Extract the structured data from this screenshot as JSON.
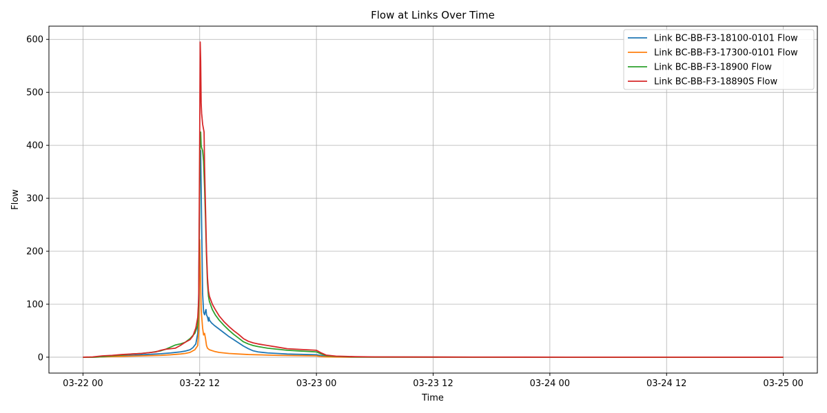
{
  "chart_data": {
    "type": "line",
    "title": "Flow at Links Over Time",
    "xlabel": "Time",
    "ylabel": "Flow",
    "x_unit": "hours",
    "xlim": [
      -3.5,
      75.5
    ],
    "ylim": [
      -30,
      625
    ],
    "x_ticks": [
      {
        "value": 0,
        "label": "03-22 00"
      },
      {
        "value": 12,
        "label": "03-22 12"
      },
      {
        "value": 24,
        "label": "03-23 00"
      },
      {
        "value": 36,
        "label": "03-23 12"
      },
      {
        "value": 48,
        "label": "03-24 00"
      },
      {
        "value": 60,
        "label": "03-24 12"
      },
      {
        "value": 72,
        "label": "03-25 00"
      }
    ],
    "y_ticks": [
      0,
      100,
      200,
      300,
      400,
      500,
      600
    ],
    "grid": true,
    "legend_position": "top-right",
    "series": [
      {
        "name": "Link BC-BB-F3-18100-0101 Flow",
        "color": "#1f77b4",
        "points": [
          [
            0,
            0
          ],
          [
            1,
            0
          ],
          [
            2,
            0.5
          ],
          [
            3,
            1.5
          ],
          [
            4,
            2.5
          ],
          [
            5,
            3.5
          ],
          [
            6,
            4.5
          ],
          [
            7,
            5.5
          ],
          [
            8,
            6.5
          ],
          [
            9,
            8
          ],
          [
            10,
            10
          ],
          [
            10.5,
            11.5
          ],
          [
            11,
            14
          ],
          [
            11.3,
            18
          ],
          [
            11.6,
            25
          ],
          [
            11.8,
            45
          ],
          [
            11.9,
            120
          ],
          [
            12,
            330
          ],
          [
            12.1,
            390
          ],
          [
            12.2,
            250
          ],
          [
            12.3,
            120
          ],
          [
            12.4,
            85
          ],
          [
            12.5,
            80
          ],
          [
            12.6,
            88
          ],
          [
            12.65,
            90
          ],
          [
            12.7,
            80
          ],
          [
            12.8,
            76
          ],
          [
            12.85,
            72
          ],
          [
            12.9,
            68
          ],
          [
            12.95,
            75
          ],
          [
            13,
            70
          ],
          [
            13.2,
            65
          ],
          [
            13.5,
            60
          ],
          [
            14,
            53
          ],
          [
            14.5,
            46
          ],
          [
            15,
            39
          ],
          [
            15.5,
            33
          ],
          [
            16,
            27
          ],
          [
            16.5,
            21
          ],
          [
            17,
            16
          ],
          [
            17.5,
            12
          ],
          [
            18,
            10
          ],
          [
            19,
            8
          ],
          [
            20,
            7
          ],
          [
            21,
            6
          ],
          [
            22,
            5.5
          ],
          [
            23,
            5
          ],
          [
            24,
            4.5
          ],
          [
            24.5,
            3
          ],
          [
            25,
            1.5
          ],
          [
            26,
            0.5
          ],
          [
            27,
            0.2
          ],
          [
            28,
            0.1
          ],
          [
            30,
            0.05
          ],
          [
            40,
            0.02
          ],
          [
            50,
            0.01
          ],
          [
            60,
            0
          ],
          [
            72,
            0
          ]
        ]
      },
      {
        "name": "Link BC-BB-F3-17300-0101 Flow",
        "color": "#ff7f0e",
        "points": [
          [
            0,
            0
          ],
          [
            1,
            0
          ],
          [
            2,
            0.5
          ],
          [
            4,
            1.5
          ],
          [
            6,
            2.5
          ],
          [
            8,
            3.5
          ],
          [
            9,
            4.5
          ],
          [
            10,
            6
          ],
          [
            10.5,
            7
          ],
          [
            11,
            9
          ],
          [
            11.5,
            14
          ],
          [
            11.8,
            22
          ],
          [
            11.9,
            50
          ],
          [
            12,
            222
          ],
          [
            12.05,
            180
          ],
          [
            12.15,
            90
          ],
          [
            12.3,
            55
          ],
          [
            12.4,
            42
          ],
          [
            12.5,
            45
          ],
          [
            12.6,
            35
          ],
          [
            12.7,
            22
          ],
          [
            12.8,
            17
          ],
          [
            13,
            14
          ],
          [
            13.5,
            11
          ],
          [
            14,
            9
          ],
          [
            15,
            7
          ],
          [
            16,
            6
          ],
          [
            17,
            5
          ],
          [
            18,
            4.5
          ],
          [
            19,
            4
          ],
          [
            20,
            3.5
          ],
          [
            22,
            3
          ],
          [
            24,
            2.5
          ],
          [
            24.5,
            1
          ],
          [
            25,
            0.5
          ],
          [
            26,
            0.2
          ],
          [
            28,
            0.1
          ],
          [
            30,
            0.05
          ],
          [
            40,
            0.02
          ],
          [
            50,
            0.01
          ],
          [
            60,
            0
          ],
          [
            72,
            0
          ]
        ]
      },
      {
        "name": "Link BC-BB-F3-18900 Flow",
        "color": "#2ca02c",
        "points": [
          [
            0,
            0
          ],
          [
            1,
            0
          ],
          [
            2,
            1
          ],
          [
            3,
            2.5
          ],
          [
            4,
            4
          ],
          [
            5,
            6
          ],
          [
            6,
            7
          ],
          [
            7,
            9
          ],
          [
            8,
            12
          ],
          [
            8.5,
            15
          ],
          [
            9,
            19
          ],
          [
            9.5,
            23
          ],
          [
            10,
            25
          ],
          [
            10.5,
            28
          ],
          [
            11,
            35
          ],
          [
            11.5,
            45
          ],
          [
            11.8,
            60
          ],
          [
            11.9,
            100
          ],
          [
            12,
            320
          ],
          [
            12.05,
            422
          ],
          [
            12.1,
            425
          ],
          [
            12.15,
            400
          ],
          [
            12.2,
            395
          ],
          [
            12.3,
            390
          ],
          [
            12.4,
            370
          ],
          [
            12.5,
            320
          ],
          [
            12.6,
            260
          ],
          [
            12.7,
            190
          ],
          [
            12.8,
            140
          ],
          [
            12.9,
            115
          ],
          [
            13,
            105
          ],
          [
            13.3,
            90
          ],
          [
            13.6,
            80
          ],
          [
            14,
            70
          ],
          [
            14.5,
            60
          ],
          [
            15,
            51
          ],
          [
            15.5,
            43
          ],
          [
            16,
            36
          ],
          [
            16.5,
            29
          ],
          [
            17,
            25
          ],
          [
            17.5,
            22
          ],
          [
            18,
            20
          ],
          [
            19,
            17
          ],
          [
            20,
            15
          ],
          [
            21,
            13
          ],
          [
            22,
            12
          ],
          [
            23,
            11
          ],
          [
            24,
            10
          ],
          [
            24.5,
            6
          ],
          [
            25,
            3
          ],
          [
            25.5,
            2
          ],
          [
            26,
            1.5
          ],
          [
            27,
            1
          ],
          [
            28,
            0.5
          ],
          [
            30,
            0.3
          ],
          [
            40,
            0.1
          ],
          [
            50,
            0.05
          ],
          [
            60,
            0.02
          ],
          [
            72,
            0
          ]
        ]
      },
      {
        "name": "Link BC-BB-F3-18890S Flow",
        "color": "#d62728",
        "points": [
          [
            0,
            0
          ],
          [
            1,
            0.5
          ],
          [
            1.5,
            1.5
          ],
          [
            2,
            2.5
          ],
          [
            3,
            3.5
          ],
          [
            4,
            5
          ],
          [
            5,
            6
          ],
          [
            6,
            7
          ],
          [
            7,
            9
          ],
          [
            7.5,
            10
          ],
          [
            8,
            13
          ],
          [
            8.5,
            15
          ],
          [
            9,
            16
          ],
          [
            9.5,
            17
          ],
          [
            10,
            22
          ],
          [
            10.5,
            28
          ],
          [
            11,
            33
          ],
          [
            11.3,
            40
          ],
          [
            11.6,
            55
          ],
          [
            11.8,
            75
          ],
          [
            11.9,
            110
          ],
          [
            12,
            420
          ],
          [
            12.05,
            595
          ],
          [
            12.1,
            560
          ],
          [
            12.15,
            480
          ],
          [
            12.2,
            460
          ],
          [
            12.3,
            440
          ],
          [
            12.4,
            430
          ],
          [
            12.45,
            425
          ],
          [
            12.5,
            360
          ],
          [
            12.6,
            280
          ],
          [
            12.7,
            200
          ],
          [
            12.8,
            150
          ],
          [
            12.9,
            125
          ],
          [
            13,
            115
          ],
          [
            13.3,
            100
          ],
          [
            13.6,
            90
          ],
          [
            14,
            78
          ],
          [
            14.5,
            67
          ],
          [
            15,
            58
          ],
          [
            15.5,
            50
          ],
          [
            16,
            43
          ],
          [
            16.5,
            35
          ],
          [
            17,
            30
          ],
          [
            17.5,
            27
          ],
          [
            18,
            25
          ],
          [
            19,
            22
          ],
          [
            20,
            19
          ],
          [
            21,
            16
          ],
          [
            22,
            15
          ],
          [
            23,
            14
          ],
          [
            24,
            13
          ],
          [
            24.5,
            8
          ],
          [
            25,
            4
          ],
          [
            25.5,
            3
          ],
          [
            26,
            2
          ],
          [
            27,
            1.5
          ],
          [
            28,
            1
          ],
          [
            30,
            0.5
          ],
          [
            40,
            0.2
          ],
          [
            50,
            0.1
          ],
          [
            60,
            0.05
          ],
          [
            72,
            0
          ]
        ]
      }
    ]
  }
}
